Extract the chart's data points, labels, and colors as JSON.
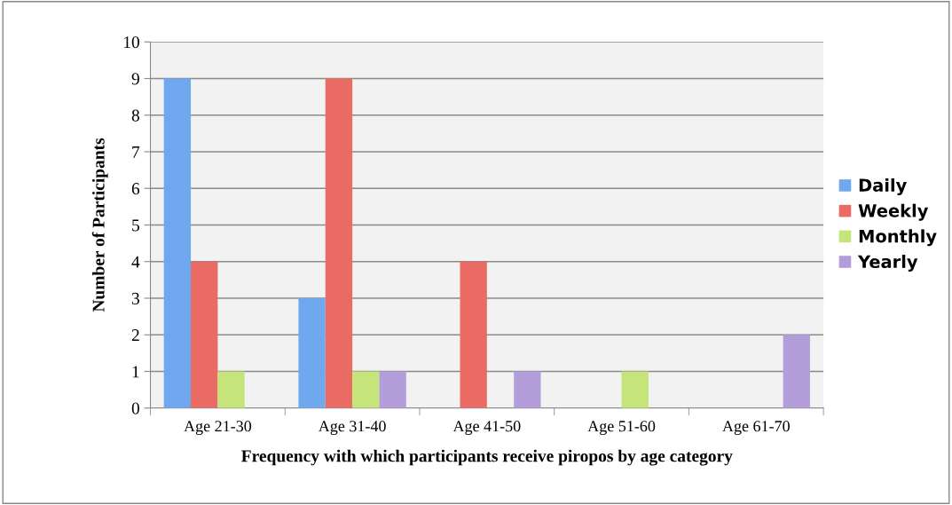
{
  "chart_data": {
    "type": "bar",
    "xlabel": "Frequency with which participants receive piropos by age category",
    "ylabel": "Number of Participants",
    "categories": [
      "Age 21-30",
      "Age 31-40",
      "Age 41-50",
      "Age 51-60",
      "Age 61-70"
    ],
    "series": [
      {
        "name": "Daily",
        "color": "#6fa8ef",
        "values": [
          9,
          3,
          0,
          0,
          0
        ]
      },
      {
        "name": "Weekly",
        "color": "#ea6b63",
        "values": [
          4,
          9,
          4,
          0,
          0
        ]
      },
      {
        "name": "Monthly",
        "color": "#c5e57a",
        "values": [
          1,
          1,
          0,
          1,
          0
        ]
      },
      {
        "name": "Yearly",
        "color": "#b49ddb",
        "values": [
          0,
          1,
          1,
          0,
          2
        ]
      }
    ],
    "ylim": [
      0,
      10
    ],
    "yticks": [
      0,
      1,
      2,
      3,
      4,
      5,
      6,
      7,
      8,
      9,
      10
    ],
    "grid": "y",
    "legend": "right"
  }
}
